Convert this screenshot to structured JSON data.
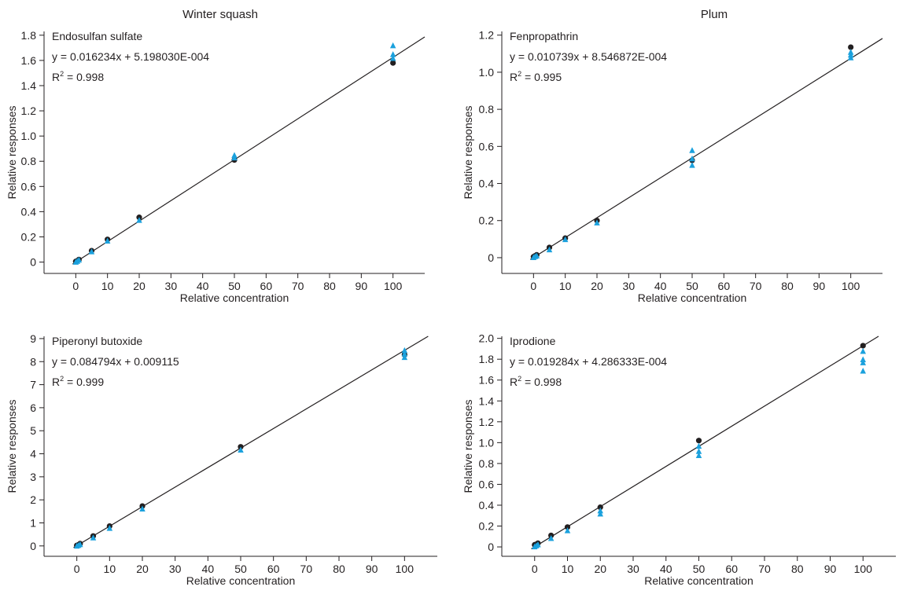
{
  "column_titles": [
    "Winter squash",
    "Plum"
  ],
  "colors": {
    "axis": "#231f20",
    "line": "#231f20",
    "circle": "#231f20",
    "triangle": "#1ba1dd"
  },
  "chart_data": [
    {
      "type": "scatter",
      "title": "Endosulfan sulfate",
      "equation": "y = 0.016234x + 5.198030E-004",
      "r2_prefix": "R",
      "r2_sup": "2",
      "r2_value": " = 0.998",
      "xlabel": "Relative concentration",
      "ylabel": "Relative responses",
      "xlim": [
        -10,
        110
      ],
      "ylim": [
        -0.09,
        1.83
      ],
      "xticks": [
        0,
        10,
        20,
        30,
        40,
        50,
        60,
        70,
        80,
        90,
        100
      ],
      "yticks": [
        0,
        0.2,
        0.4,
        0.6,
        0.8,
        1.0,
        1.2,
        1.4,
        1.6,
        1.8
      ],
      "ytick_labels": [
        "0",
        "0.2",
        "0.4",
        "0.6",
        "0.8",
        "1.0",
        "1.2",
        "1.4",
        "1.6",
        "1.8"
      ],
      "fit": {
        "slope": 0.016234,
        "intercept": 0.000519803,
        "x_range": [
          -1,
          110
        ]
      },
      "series": [
        {
          "marker": "circle",
          "x": [
            0,
            0.5,
            1,
            5,
            10,
            20,
            50,
            100
          ],
          "y": [
            0.005,
            0.01,
            0.02,
            0.09,
            0.18,
            0.355,
            0.81,
            1.58
          ]
        },
        {
          "marker": "triangle",
          "x": [
            0,
            0.5,
            1,
            5,
            10,
            20,
            50,
            50,
            100,
            100,
            100
          ],
          "y": [
            0.003,
            0.01,
            0.02,
            0.085,
            0.17,
            0.335,
            0.83,
            0.85,
            1.62,
            1.65,
            1.72
          ]
        }
      ]
    },
    {
      "type": "scatter",
      "title": "Fenpropathrin",
      "equation": "y = 0.010739x + 8.546872E-004",
      "r2_prefix": "R",
      "r2_sup": "2",
      "r2_value": " = 0.995",
      "xlabel": "Relative concentration",
      "ylabel": "Relative responses",
      "xlim": [
        -10,
        110
      ],
      "ylim": [
        -0.085,
        1.22
      ],
      "xticks": [
        0,
        10,
        20,
        30,
        40,
        50,
        60,
        70,
        80,
        90,
        100
      ],
      "yticks": [
        0,
        0.2,
        0.4,
        0.6,
        0.8,
        1.0,
        1.2
      ],
      "ytick_labels": [
        "0",
        "0.2",
        "0.4",
        "0.6",
        "0.8",
        "1.0",
        "1.2"
      ],
      "fit": {
        "slope": 0.010739,
        "intercept": 0.0008546872,
        "x_range": [
          -1,
          110
        ]
      },
      "series": [
        {
          "marker": "circle",
          "x": [
            0,
            0.5,
            1,
            5,
            10,
            20,
            50,
            100
          ],
          "y": [
            0.005,
            0.01,
            0.015,
            0.055,
            0.105,
            0.2,
            0.525,
            1.135
          ]
        },
        {
          "marker": "triangle",
          "x": [
            0,
            0.5,
            1,
            5,
            10,
            20,
            50,
            50,
            50,
            100,
            100,
            100
          ],
          "y": [
            0.003,
            0.008,
            0.012,
            0.045,
            0.1,
            0.19,
            0.5,
            0.535,
            0.58,
            1.08,
            1.095,
            1.11
          ]
        }
      ]
    },
    {
      "type": "scatter",
      "title": "Piperonyl butoxide",
      "equation": "y = 0.084794x + 0.009115",
      "r2_prefix": "R",
      "r2_sup": "2",
      "r2_value": " = 0.999",
      "xlabel": "Relative concentration",
      "ylabel": "Relative responses",
      "xlim": [
        -10,
        110
      ],
      "ylim": [
        -0.45,
        9.1
      ],
      "xticks": [
        0,
        10,
        20,
        30,
        40,
        50,
        60,
        70,
        80,
        90,
        100
      ],
      "yticks": [
        0,
        1,
        2,
        3,
        4,
        5,
        6,
        7,
        8,
        9
      ],
      "ytick_labels": [
        "0",
        "1",
        "2",
        "3",
        "4",
        "5",
        "6",
        "7",
        "8",
        "9"
      ],
      "fit": {
        "slope": 0.084794,
        "intercept": 0.009115,
        "x_range": [
          -1,
          110
        ]
      },
      "series": [
        {
          "marker": "circle",
          "x": [
            0,
            0.5,
            1,
            5,
            10,
            20,
            50,
            100
          ],
          "y": [
            0.02,
            0.05,
            0.1,
            0.43,
            0.86,
            1.73,
            4.3,
            8.3
          ]
        },
        {
          "marker": "triangle",
          "x": [
            0,
            0.5,
            1,
            5,
            10,
            20,
            50,
            100,
            100,
            100
          ],
          "y": [
            0.01,
            0.04,
            0.08,
            0.37,
            0.78,
            1.62,
            4.18,
            8.2,
            8.35,
            8.5
          ]
        }
      ]
    },
    {
      "type": "scatter",
      "title": "Iprodione",
      "equation": "y = 0.019284x + 4.286333E-004",
      "r2_prefix": "R",
      "r2_sup": "2",
      "r2_value": " = 0.998",
      "xlabel": "Relative concentration",
      "ylabel": "Relative responses",
      "xlim": [
        -10,
        110
      ],
      "ylim": [
        -0.09,
        2.02
      ],
      "xticks": [
        0,
        10,
        20,
        30,
        40,
        50,
        60,
        70,
        80,
        90,
        100
      ],
      "yticks": [
        0,
        0.2,
        0.4,
        0.6,
        0.8,
        1.0,
        1.2,
        1.4,
        1.6,
        1.8,
        2.0
      ],
      "ytick_labels": [
        "0",
        "0.2",
        "0.4",
        "0.6",
        "0.8",
        "1.0",
        "1.2",
        "1.4",
        "1.6",
        "1.8",
        "2.0"
      ],
      "fit": {
        "slope": 0.019284,
        "intercept": 0.0004286333,
        "x_range": [
          -1,
          110
        ]
      },
      "series": [
        {
          "marker": "circle",
          "x": [
            0,
            0.5,
            1,
            5,
            10,
            20,
            50,
            100
          ],
          "y": [
            0.02,
            0.025,
            0.035,
            0.11,
            0.19,
            0.38,
            1.02,
            1.93
          ]
        },
        {
          "marker": "triangle",
          "x": [
            0,
            0.5,
            1,
            5,
            10,
            20,
            20,
            50,
            50,
            50,
            100,
            100,
            100,
            100
          ],
          "y": [
            0.005,
            0.015,
            0.025,
            0.085,
            0.16,
            0.32,
            0.35,
            0.88,
            0.92,
            0.97,
            1.69,
            1.77,
            1.8,
            1.88
          ]
        }
      ]
    }
  ]
}
